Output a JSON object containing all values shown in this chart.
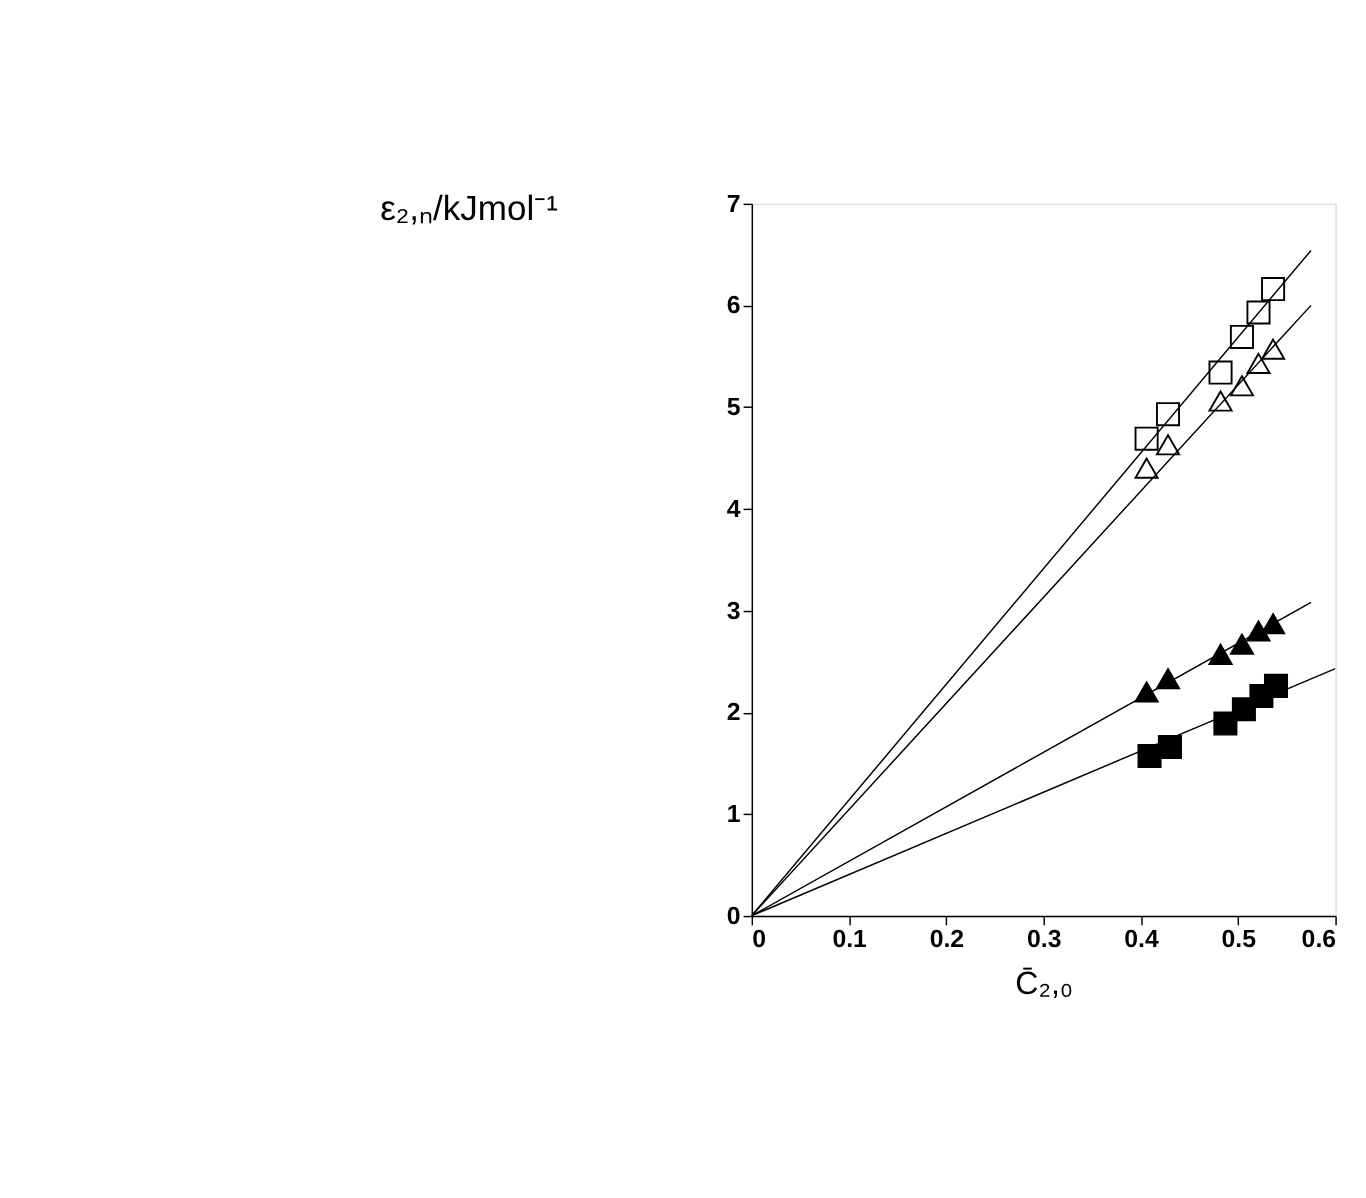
{
  "chart_data": {
    "type": "scatter",
    "xlabel": "C̄₂,₀",
    "ylabel": "ε₂,ₙ/kJmol⁻¹",
    "xlim": [
      0,
      0.6
    ],
    "xticks": [
      0,
      0.1,
      0.2,
      0.3,
      0.4,
      0.5,
      0.6
    ],
    "ylim": [
      0,
      7
    ],
    "yticks": [
      0,
      1,
      2,
      3,
      4,
      5,
      6,
      7
    ],
    "series": [
      {
        "marker": "square",
        "color": "#ffffff",
        "x": [
          0.406,
          0.428,
          0.482,
          0.504,
          0.521,
          0.536
        ],
        "values": [
          4.69,
          4.93,
          5.34,
          5.69,
          5.93,
          6.16
        ]
      },
      {
        "marker": "triangle",
        "color": "#ffffff",
        "x": [
          0.406,
          0.428,
          0.482,
          0.504,
          0.521,
          0.536
        ],
        "values": [
          4.4,
          4.63,
          5.06,
          5.21,
          5.43,
          5.57
        ]
      },
      {
        "marker": "triangle",
        "color": "#000000",
        "x": [
          0.406,
          0.428,
          0.482,
          0.504,
          0.521,
          0.536
        ],
        "values": [
          2.2,
          2.33,
          2.57,
          2.67,
          2.8,
          2.87
        ]
      },
      {
        "marker": "square",
        "color": "#000000",
        "x": [
          0.409,
          0.43,
          0.487,
          0.506,
          0.524,
          0.539
        ],
        "values": [
          1.57,
          1.66,
          1.89,
          2.03,
          2.16,
          2.26
        ]
      },
      {
        "type": "line",
        "marker": "none",
        "line_style": "solid",
        "color": "#000000",
        "x": [
          0,
          0.575
        ],
        "values": [
          0,
          6.54
        ]
      },
      {
        "type": "line",
        "marker": "none",
        "line_style": "solid",
        "color": "#000000",
        "x": [
          0,
          0.575
        ],
        "values": [
          0,
          6.0
        ]
      },
      {
        "type": "line",
        "marker": "none",
        "line_style": "solid",
        "color": "#000000",
        "x": [
          0,
          0.575
        ],
        "values": [
          0,
          3.08
        ]
      },
      {
        "type": "line",
        "marker": "none",
        "line_style": "solid",
        "color": "#000000",
        "x": [
          0,
          0.6
        ],
        "values": [
          0,
          2.43
        ]
      }
    ]
  }
}
